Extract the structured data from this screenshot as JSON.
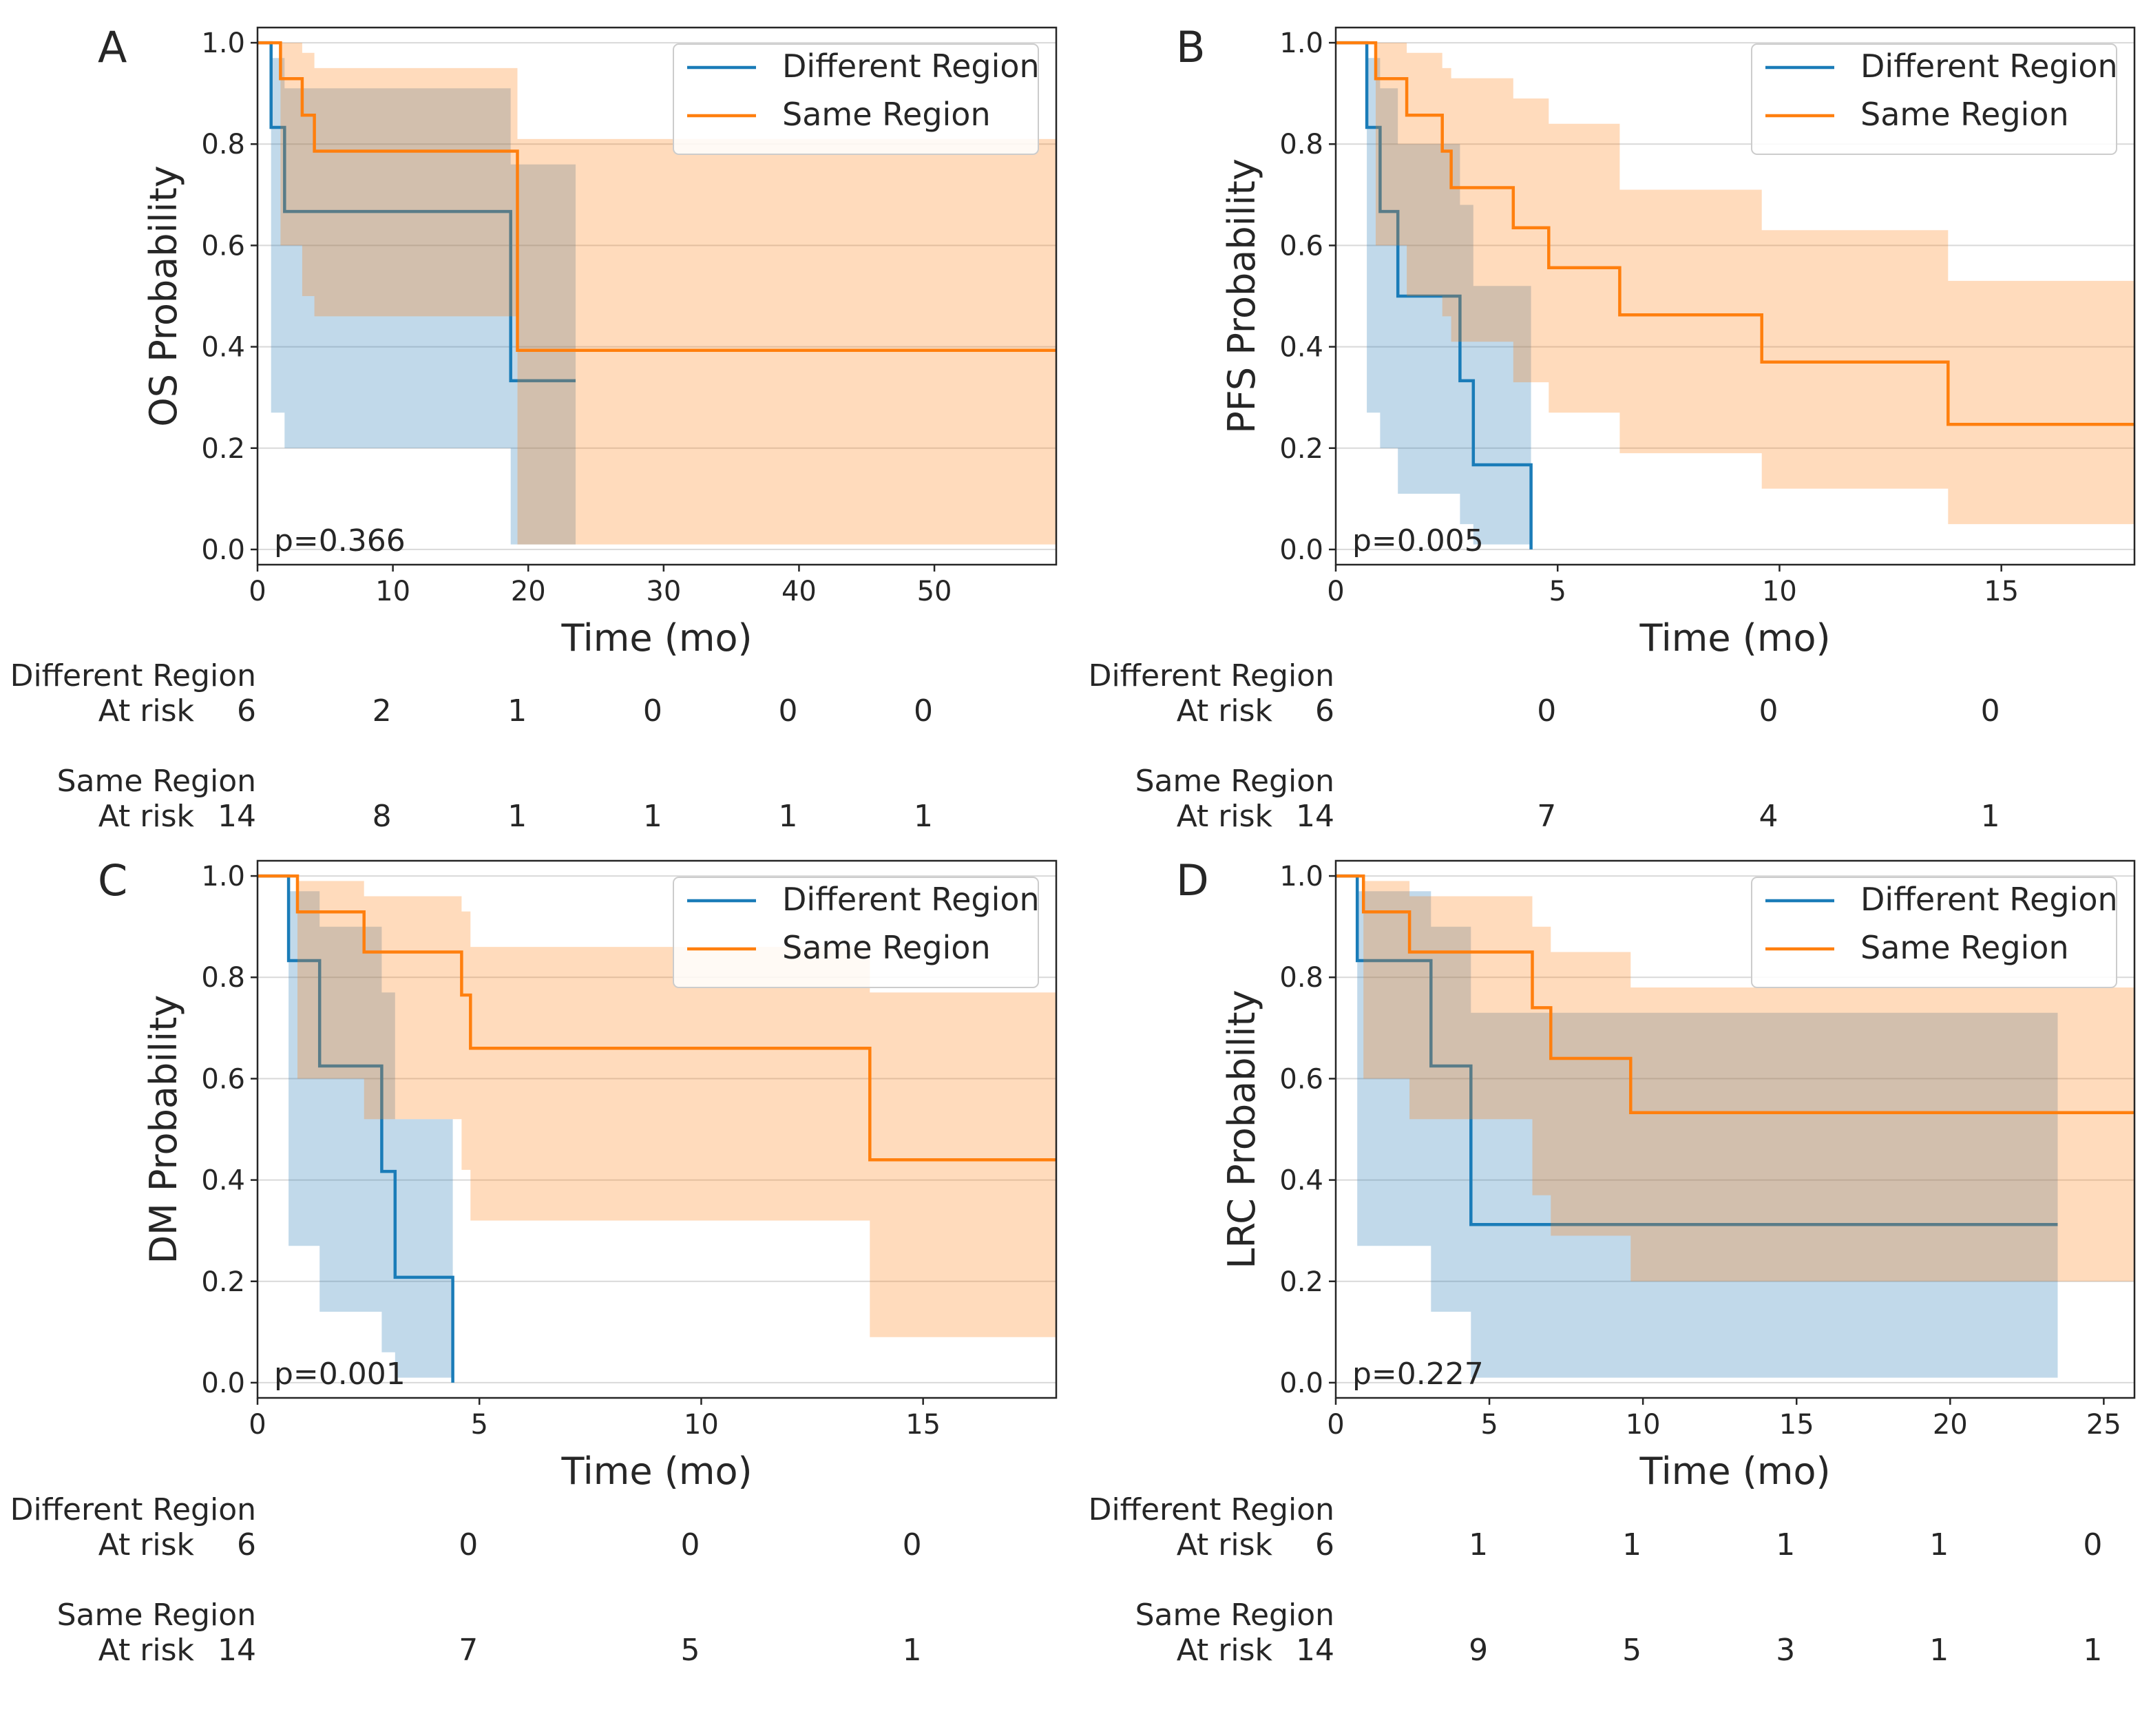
{
  "colors": {
    "different": "#1f77b4",
    "different_line": "#1a7cb8",
    "same": "#ff7f0e",
    "grid": "#d9d9d9",
    "axis": "#262626"
  },
  "chart_data": [
    {
      "type": "line",
      "subtype": "kaplan-meier",
      "panel": "A",
      "ylabel": "OS Probability",
      "xlabel": "Time (mo)",
      "xlim": [
        0,
        59
      ],
      "ylim": [
        -0.03,
        1.03
      ],
      "xticks": [
        0,
        10,
        20,
        30,
        40,
        50
      ],
      "yticks": [
        "0.0",
        "0.2",
        "0.4",
        "0.6",
        "0.8",
        "1.0"
      ],
      "grid": true,
      "legend_position": "top-right",
      "pvalue": "p=0.366",
      "series": [
        {
          "name": "Different Region",
          "steps": [
            [
              0,
              1.0
            ],
            [
              1.0,
              0.833
            ],
            [
              2.0,
              0.667
            ],
            [
              18.7,
              0.333
            ],
            [
              23.5,
              0.333
            ]
          ],
          "ci": [
            [
              0,
              1.0,
              1.0
            ],
            [
              1.0,
              0.27,
              0.97
            ],
            [
              2.0,
              0.2,
              0.91
            ],
            [
              18.7,
              0.01,
              0.76
            ],
            [
              23.5,
              0.01,
              0.76
            ]
          ]
        },
        {
          "name": "Same Region",
          "steps": [
            [
              0,
              1.0
            ],
            [
              1.7,
              0.929
            ],
            [
              3.3,
              0.857
            ],
            [
              4.2,
              0.786
            ],
            [
              19.2,
              0.393
            ],
            [
              59,
              0.393
            ]
          ],
          "ci": [
            [
              0,
              1.0,
              1.0
            ],
            [
              1.7,
              0.6,
              1.0
            ],
            [
              3.3,
              0.5,
              0.98
            ],
            [
              4.2,
              0.46,
              0.95
            ],
            [
              19.2,
              0.01,
              0.81
            ],
            [
              59,
              0.01,
              0.81
            ]
          ]
        }
      ],
      "at_risk": {
        "times": [
          0,
          10,
          20,
          30,
          40,
          50
        ],
        "groups": [
          {
            "name": "Different Region",
            "label": "At risk",
            "counts": [
              "6",
              "2",
              "1",
              "0",
              "0",
              "0"
            ]
          },
          {
            "name": "Same Region",
            "label": "At risk",
            "counts": [
              "14",
              "8",
              "1",
              "1",
              "1",
              "1"
            ]
          }
        ]
      }
    },
    {
      "type": "line",
      "subtype": "kaplan-meier",
      "panel": "B",
      "ylabel": "PFS Probability",
      "xlabel": "Time (mo)",
      "xlim": [
        0,
        18
      ],
      "ylim": [
        -0.03,
        1.03
      ],
      "xticks": [
        0,
        5,
        10,
        15
      ],
      "yticks": [
        "0.0",
        "0.2",
        "0.4",
        "0.6",
        "0.8",
        "1.0"
      ],
      "grid": true,
      "legend_position": "top-right",
      "pvalue": "p=0.005",
      "series": [
        {
          "name": "Different Region",
          "steps": [
            [
              0,
              1.0
            ],
            [
              0.7,
              0.833
            ],
            [
              1.0,
              0.667
            ],
            [
              1.4,
              0.5
            ],
            [
              2.8,
              0.333
            ],
            [
              3.1,
              0.167
            ],
            [
              4.4,
              0.0
            ]
          ],
          "ci": [
            [
              0,
              1.0,
              1.0
            ],
            [
              0.7,
              0.27,
              0.97
            ],
            [
              1.0,
              0.2,
              0.91
            ],
            [
              1.4,
              0.11,
              0.8
            ],
            [
              2.8,
              0.05,
              0.68
            ],
            [
              3.1,
              0.01,
              0.52
            ],
            [
              4.4,
              0.01,
              0.52
            ]
          ]
        },
        {
          "name": "Same Region",
          "steps": [
            [
              0,
              1.0
            ],
            [
              0.9,
              0.929
            ],
            [
              1.6,
              0.857
            ],
            [
              2.4,
              0.786
            ],
            [
              2.6,
              0.714
            ],
            [
              4.0,
              0.635
            ],
            [
              4.8,
              0.556
            ],
            [
              6.4,
              0.463
            ],
            [
              9.6,
              0.37
            ],
            [
              13.8,
              0.247
            ],
            [
              18,
              0.247
            ]
          ],
          "ci": [
            [
              0,
              1.0,
              1.0
            ],
            [
              0.9,
              0.6,
              1.0
            ],
            [
              1.6,
              0.5,
              0.98
            ],
            [
              2.4,
              0.46,
              0.95
            ],
            [
              2.6,
              0.41,
              0.93
            ],
            [
              4.0,
              0.33,
              0.89
            ],
            [
              4.8,
              0.27,
              0.84
            ],
            [
              6.4,
              0.19,
              0.71
            ],
            [
              9.6,
              0.12,
              0.63
            ],
            [
              13.8,
              0.05,
              0.53
            ],
            [
              18,
              0.05,
              0.53
            ]
          ]
        }
      ],
      "at_risk": {
        "times": [
          0,
          5,
          10,
          15
        ],
        "groups": [
          {
            "name": "Different Region",
            "label": "At risk",
            "counts": [
              "6",
              "0",
              "0",
              "0"
            ]
          },
          {
            "name": "Same Region",
            "label": "At risk",
            "counts": [
              "14",
              "7",
              "4",
              "1"
            ]
          }
        ]
      }
    },
    {
      "type": "line",
      "subtype": "kaplan-meier",
      "panel": "C",
      "ylabel": "DM Probability",
      "xlabel": "Time (mo)",
      "xlim": [
        0,
        18
      ],
      "ylim": [
        -0.03,
        1.03
      ],
      "xticks": [
        0,
        5,
        10,
        15
      ],
      "yticks": [
        "0.0",
        "0.2",
        "0.4",
        "0.6",
        "0.8",
        "1.0"
      ],
      "grid": true,
      "legend_position": "top-right",
      "pvalue": "p=0.001",
      "series": [
        {
          "name": "Different Region",
          "steps": [
            [
              0,
              1.0
            ],
            [
              0.7,
              0.833
            ],
            [
              1.4,
              0.625
            ],
            [
              2.8,
              0.417
            ],
            [
              3.1,
              0.208
            ],
            [
              4.4,
              0.0
            ]
          ],
          "ci": [
            [
              0,
              1.0,
              1.0
            ],
            [
              0.7,
              0.27,
              0.97
            ],
            [
              1.4,
              0.14,
              0.9
            ],
            [
              2.8,
              0.06,
              0.77
            ],
            [
              3.1,
              0.01,
              0.52
            ],
            [
              4.4,
              0.01,
              0.52
            ]
          ]
        },
        {
          "name": "Same Region",
          "steps": [
            [
              0,
              1.0
            ],
            [
              0.9,
              0.929
            ],
            [
              2.4,
              0.85
            ],
            [
              4.6,
              0.765
            ],
            [
              4.8,
              0.66
            ],
            [
              13.8,
              0.44
            ],
            [
              18,
              0.44
            ]
          ],
          "ci": [
            [
              0,
              1.0,
              1.0
            ],
            [
              0.9,
              0.6,
              0.99
            ],
            [
              2.4,
              0.52,
              0.96
            ],
            [
              4.6,
              0.42,
              0.93
            ],
            [
              4.8,
              0.32,
              0.86
            ],
            [
              13.8,
              0.09,
              0.77
            ],
            [
              18,
              0.09,
              0.77
            ]
          ]
        }
      ],
      "at_risk": {
        "times": [
          0,
          5,
          10,
          15
        ],
        "groups": [
          {
            "name": "Different Region",
            "label": "At risk",
            "counts": [
              "6",
              "0",
              "0",
              "0"
            ]
          },
          {
            "name": "Same Region",
            "label": "At risk",
            "counts": [
              "14",
              "7",
              "5",
              "1"
            ]
          }
        ]
      }
    },
    {
      "type": "line",
      "subtype": "kaplan-meier",
      "panel": "D",
      "ylabel": "LRC Probability",
      "xlabel": "Time (mo)",
      "xlim": [
        0,
        26
      ],
      "ylim": [
        -0.03,
        1.03
      ],
      "xticks": [
        0,
        5,
        10,
        15,
        20,
        25
      ],
      "yticks": [
        "0.0",
        "0.2",
        "0.4",
        "0.6",
        "0.8",
        "1.0"
      ],
      "grid": true,
      "legend_position": "top-right",
      "pvalue": "p=0.227",
      "series": [
        {
          "name": "Different Region",
          "steps": [
            [
              0,
              1.0
            ],
            [
              0.7,
              0.833
            ],
            [
              3.1,
              0.625
            ],
            [
              4.4,
              0.312
            ],
            [
              23.5,
              0.312
            ]
          ],
          "ci": [
            [
              0,
              1.0,
              1.0
            ],
            [
              0.7,
              0.27,
              0.97
            ],
            [
              3.1,
              0.14,
              0.9
            ],
            [
              4.4,
              0.01,
              0.73
            ],
            [
              23.5,
              0.01,
              0.73
            ]
          ]
        },
        {
          "name": "Same Region",
          "steps": [
            [
              0,
              1.0
            ],
            [
              0.9,
              0.929
            ],
            [
              2.4,
              0.85
            ],
            [
              6.4,
              0.74
            ],
            [
              7.0,
              0.64
            ],
            [
              9.6,
              0.533
            ],
            [
              26,
              0.533
            ]
          ],
          "ci": [
            [
              0,
              1.0,
              1.0
            ],
            [
              0.9,
              0.6,
              0.99
            ],
            [
              2.4,
              0.52,
              0.96
            ],
            [
              6.4,
              0.37,
              0.9
            ],
            [
              7.0,
              0.29,
              0.85
            ],
            [
              9.6,
              0.2,
              0.78
            ],
            [
              26,
              0.2,
              0.78
            ]
          ]
        }
      ],
      "at_risk": {
        "times": [
          0,
          5,
          10,
          15,
          20,
          25
        ],
        "groups": [
          {
            "name": "Different Region",
            "label": "At risk",
            "counts": [
              "6",
              "1",
              "1",
              "1",
              "1",
              "0"
            ]
          },
          {
            "name": "Same Region",
            "label": "At risk",
            "counts": [
              "14",
              "9",
              "5",
              "3",
              "1",
              "1"
            ]
          }
        ]
      }
    }
  ]
}
